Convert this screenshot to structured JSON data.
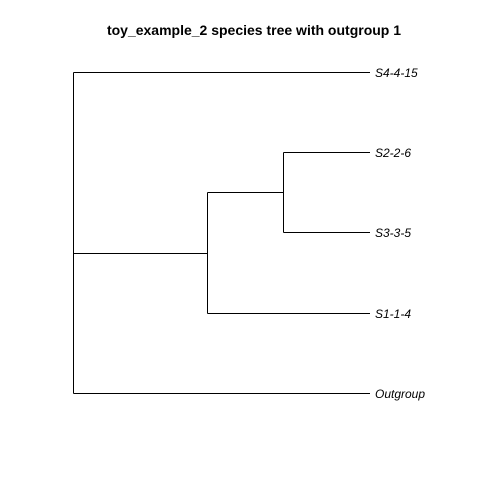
{
  "title": "toy_example_2 species tree with outgroup 1",
  "tree": {
    "tips": [
      {
        "label": "S4-4-15"
      },
      {
        "label": "S2-2-6"
      },
      {
        "label": "S3-3-5"
      },
      {
        "label": "S1-1-4"
      },
      {
        "label": "Outgroup"
      }
    ]
  },
  "colors": {
    "background": "#ffffff",
    "line": "#000000",
    "text": "#000000"
  }
}
